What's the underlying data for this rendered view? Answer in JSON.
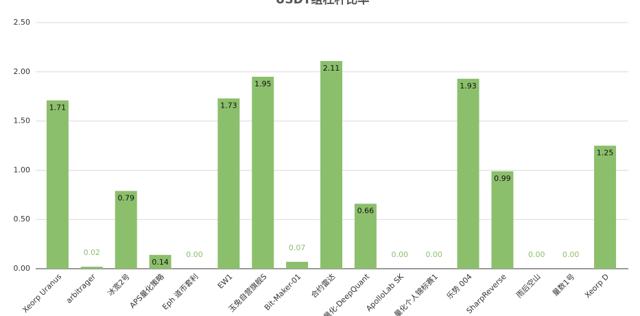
{
  "chart_data": {
    "type": "bar",
    "title": "USDT组杠杆比率",
    "categories": [
      "Xeorp Uranus",
      "arbitrager",
      "冰宽2号",
      "APS量化策略",
      "Eph 道币套利",
      "EW1",
      "玉兔自营旗舰S",
      "Bit-Maker-01",
      "合约雷达",
      "量化-DeepQuant",
      "ApolloLab SK",
      "量化个人锦标赛1",
      "乐势 004",
      "SharpReverse",
      "雨后空山",
      "量数1号",
      "Xeorp D"
    ],
    "values": [
      1.71,
      0.02,
      0.79,
      0.14,
      0,
      1.73,
      1.95,
      0.07,
      2.11,
      0.66,
      0,
      0,
      1.93,
      0.99,
      0,
      0,
      1.25
    ],
    "value_labels": [
      "1.71",
      "0.02",
      "0.79",
      "0.14",
      "0.00",
      "1.73",
      "1.95",
      "0.07",
      "2.11",
      "0.66",
      "0.00",
      "0.00",
      "1.93",
      "0.99",
      "0.00",
      "0.00",
      "1.25"
    ],
    "color": "#8cbf6c",
    "ylim": [
      0,
      2.5
    ],
    "yticks": [
      {
        "value": 0,
        "label": "0.00"
      },
      {
        "value": 0.5,
        "label": "0.50"
      },
      {
        "value": 1,
        "label": "1.00"
      },
      {
        "value": 1.5,
        "label": "1.50"
      },
      {
        "value": 2,
        "label": "2.00"
      },
      {
        "value": 2.5,
        "label": "2.50"
      }
    ],
    "grid": true
  }
}
